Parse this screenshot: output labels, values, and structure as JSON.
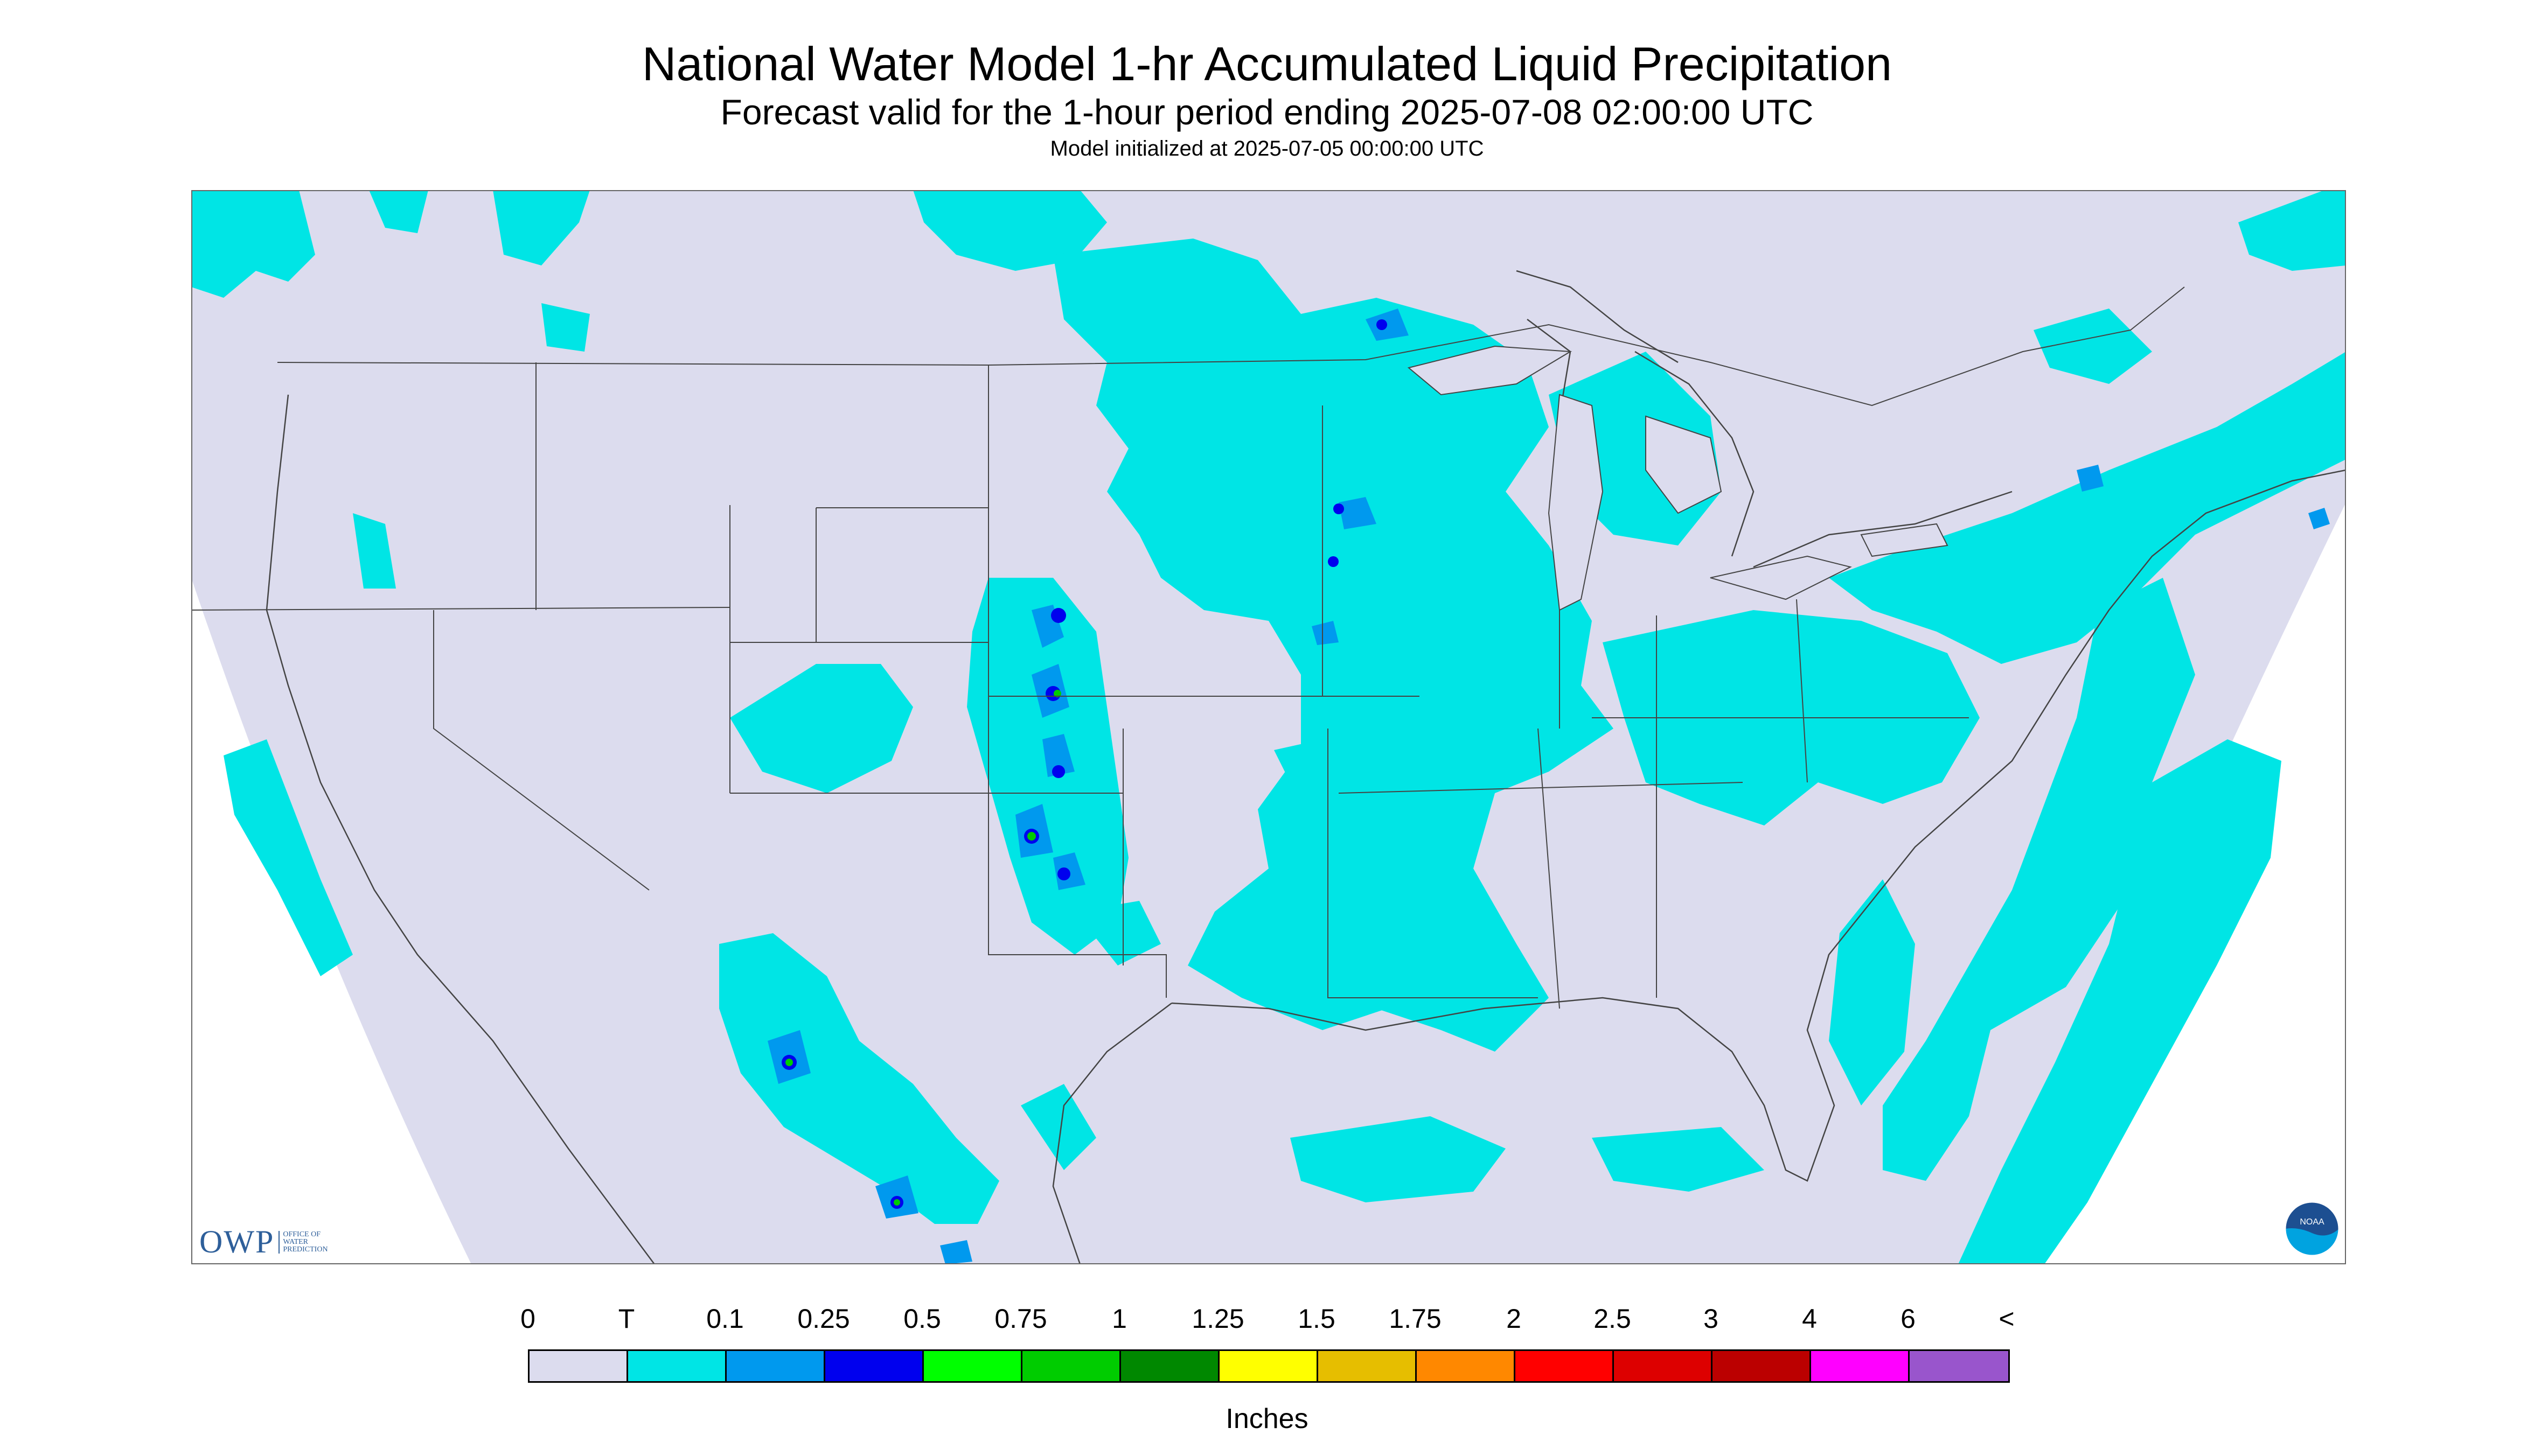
{
  "header": {
    "title": "National Water Model 1-hr Accumulated Liquid Precipitation",
    "subtitle": "Forecast valid for the 1-hour period ending 2025-07-08 02:00:00 UTC",
    "init": "Model initialized at 2025-07-05 00:00:00 UTC"
  },
  "map": {
    "region": "Continental United States with parts of Canada and Mexico",
    "background_color": "#dcdcee",
    "border_color": "#444444",
    "precip_colors": {
      "trace": "#00e5e5",
      "light": "#0099ee",
      "moderate": "#0000ee",
      "heavy": "#00cc00",
      "very_heavy": "#008800"
    }
  },
  "legend": {
    "labels": [
      "0",
      "T",
      "0.1",
      "0.25",
      "0.5",
      "0.75",
      "1",
      "1.25",
      "1.5",
      "1.75",
      "2",
      "2.5",
      "3",
      "4",
      "6",
      "<"
    ],
    "colors": [
      "#dcdcee",
      "#00e5e5",
      "#0099ee",
      "#0000ee",
      "#00ff00",
      "#00cc00",
      "#008800",
      "#ffff00",
      "#e6be00",
      "#ff8800",
      "#ff0000",
      "#dd0000",
      "#bb0000",
      "#ff00ff",
      "#9955cc"
    ],
    "unit": "Inches"
  },
  "logos": {
    "owp_mark": "OWP",
    "owp_text": "Office of Water Prediction",
    "noaa_text": "NOAA"
  }
}
